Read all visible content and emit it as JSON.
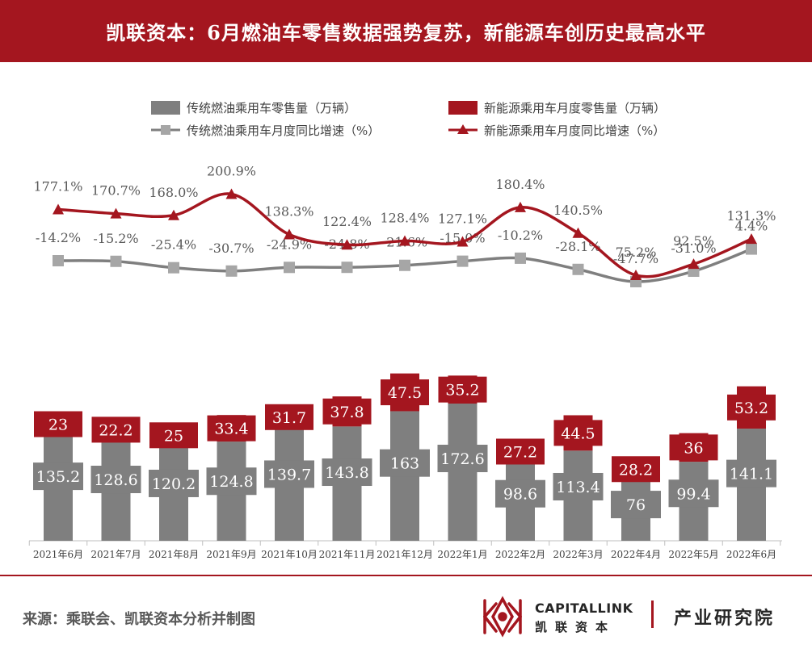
{
  "header": {
    "title": "凯联资本：6月燃油车零售数据强势复苏，新能源车创历史最高水平"
  },
  "colors": {
    "brand_red": "#a4161f",
    "gray_bar": "#7f7f7f",
    "gray_line": "#7f7f7f",
    "red": "#a4161f"
  },
  "chart_data": {
    "type": "bar",
    "categories": [
      "2021年6月",
      "2021年7月",
      "2021年8月",
      "2021年9月",
      "2021年10月",
      "2021年11月",
      "2021年12月",
      "2022年1月",
      "2022年2月",
      "2022年3月",
      "2022年4月",
      "2022年5月",
      "2022年6月"
    ],
    "legend": {
      "fuel_sales": "传统燃油乘用车零售量（万辆）",
      "nev_sales": "新能源乘用车月度零售量（万辆）",
      "fuel_yoy": "传统燃油乘用车月度同比增速（%）",
      "nev_yoy": "新能源乘用车月度同比增速（%）"
    },
    "series": [
      {
        "name": "传统燃油乘用车零售量（万辆）",
        "type": "bar",
        "values": [
          135.2,
          128.6,
          120.2,
          124.8,
          139.7,
          143.8,
          163,
          172.6,
          98.6,
          113.4,
          76,
          99.4,
          141.1
        ]
      },
      {
        "name": "新能源乘用车月度零售量（万辆）",
        "type": "bar",
        "values": [
          23,
          22.2,
          25,
          33.4,
          31.7,
          37.8,
          47.5,
          35.2,
          27.2,
          44.5,
          28.2,
          36,
          53.2
        ]
      },
      {
        "name": "传统燃油乘用车月度同比增速（%）",
        "type": "line",
        "values": [
          -14.2,
          -15.2,
          -25.4,
          -30.7,
          -24.9,
          -24.8,
          -21.6,
          -15.0,
          -10.2,
          -28.1,
          -47.7,
          -31.0,
          4.4
        ],
        "labels": [
          "-14.2%",
          "-15.2%",
          "-25.4%",
          "-30.7%",
          "-24.9%",
          "-24.8%",
          "-21.6%",
          "-15.0%",
          "-10.2%",
          "-28.1%",
          "-47.7%",
          "-31.0%",
          "4.4%"
        ]
      },
      {
        "name": "新能源乘用车月度同比增速（%）",
        "type": "line",
        "values": [
          177.1,
          170.7,
          168.0,
          200.9,
          138.3,
          122.4,
          128.4,
          127.1,
          180.4,
          140.5,
          75.2,
          92.5,
          131.3
        ],
        "labels": [
          "177.1%",
          "170.7%",
          "168.0%",
          "200.9%",
          "138.3%",
          "122.4%",
          "128.4%",
          "127.1%",
          "180.4%",
          "140.5%",
          "75.2%",
          "92.5%",
          "131.3%"
        ]
      }
    ]
  },
  "footer": {
    "source": "来源：乘联会、凯联资本分析并制图",
    "brand_en": "CAPITALLINK",
    "brand_cn": "凯联资本",
    "institute": "产业研究院"
  }
}
